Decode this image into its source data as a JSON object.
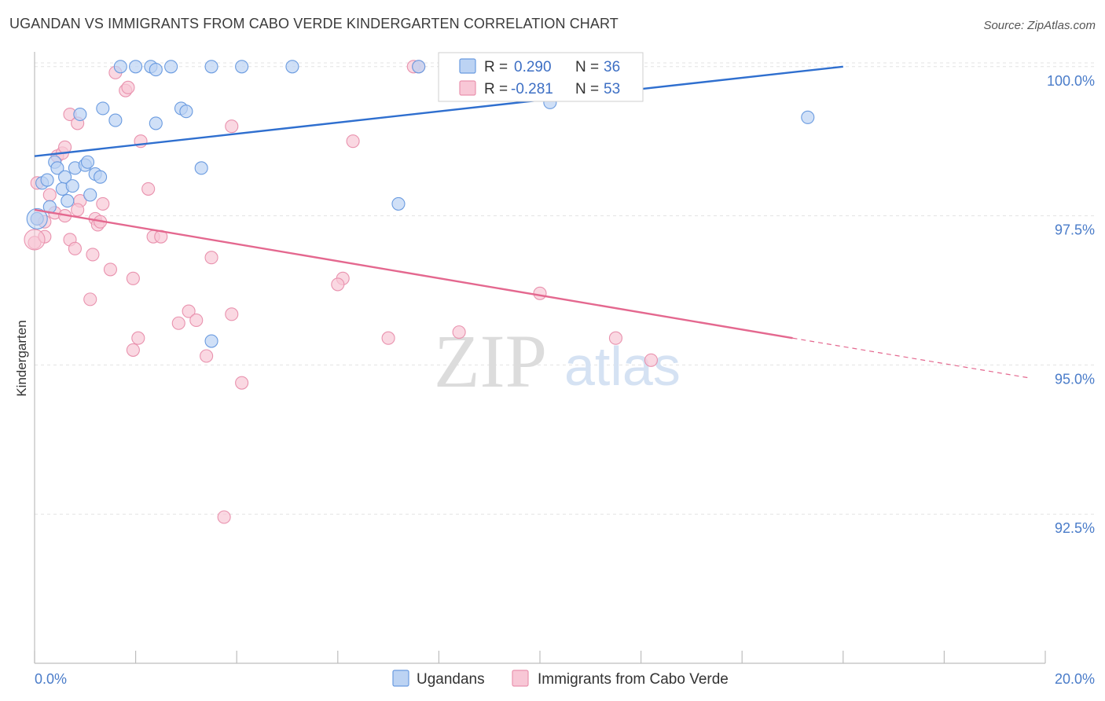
{
  "title": "UGANDAN VS IMMIGRANTS FROM CABO VERDE KINDERGARTEN CORRELATION CHART",
  "source": "Source: ZipAtlas.com",
  "watermark": {
    "zip": "ZIP",
    "atlas": "atlas"
  },
  "colors": {
    "blue_fill": "#bcd3f3",
    "blue_stroke": "#6a9be0",
    "blue_line": "#2f6fcf",
    "pink_fill": "#f8c7d6",
    "pink_stroke": "#e992ae",
    "pink_line": "#e4688f",
    "tick_text": "#4a7cc9",
    "grid": "#e3e3e3"
  },
  "legend": {
    "rows": [
      {
        "r_label": "R = ",
        "r_value": "0.290",
        "n_label": "N = ",
        "n_value": "36"
      },
      {
        "r_label": "R = ",
        "r_value": "-0.281",
        "n_label": "N = ",
        "n_value": "53"
      }
    ]
  },
  "bottom_legend": [
    "Ugandans",
    "Immigrants from Cabo Verde"
  ],
  "chart_data": {
    "type": "scatter",
    "title": "UGANDAN VS IMMIGRANTS FROM CABO VERDE KINDERGARTEN CORRELATION CHART",
    "xlabel": "",
    "ylabel": "Kindergarten",
    "xlim": [
      0,
      20
    ],
    "ylim": [
      90.0,
      100.3
    ],
    "x_tick_labels": [
      "0.0%",
      "20.0%"
    ],
    "y_ticks": [
      92.5,
      95.0,
      97.5,
      100.0
    ],
    "y_tick_labels": [
      "92.5%",
      "95.0%",
      "97.5%",
      "100.0%"
    ],
    "grid": true,
    "legend_position": "top-center",
    "series": [
      {
        "name": "Ugandans",
        "color": "#6a9be0",
        "trend": {
          "x0": 0.0,
          "y0": 98.5,
          "x1": 16.0,
          "y1": 100.0
        },
        "points": [
          [
            1.7,
            100.0
          ],
          [
            2.0,
            100.0
          ],
          [
            2.3,
            100.0
          ],
          [
            2.4,
            99.95
          ],
          [
            2.7,
            100.0
          ],
          [
            3.5,
            100.0
          ],
          [
            4.1,
            100.0
          ],
          [
            5.1,
            100.0
          ],
          [
            7.6,
            100.0
          ],
          [
            1.35,
            99.3
          ],
          [
            1.6,
            99.1
          ],
          [
            2.4,
            99.05
          ],
          [
            2.9,
            99.3
          ],
          [
            3.0,
            99.25
          ],
          [
            0.9,
            99.2
          ],
          [
            15.3,
            99.15
          ],
          [
            10.2,
            99.4
          ],
          [
            0.4,
            98.4
          ],
          [
            0.45,
            98.3
          ],
          [
            0.8,
            98.3
          ],
          [
            1.0,
            98.35
          ],
          [
            1.05,
            98.4
          ],
          [
            1.2,
            98.2
          ],
          [
            1.3,
            98.15
          ],
          [
            3.3,
            98.3
          ],
          [
            0.15,
            98.05
          ],
          [
            0.25,
            98.1
          ],
          [
            0.6,
            98.15
          ],
          [
            0.55,
            97.95
          ],
          [
            0.75,
            98.0
          ],
          [
            1.1,
            97.85
          ],
          [
            0.3,
            97.65
          ],
          [
            0.65,
            97.75
          ],
          [
            7.2,
            97.7
          ],
          [
            0.05,
            97.45
          ],
          [
            3.5,
            95.4
          ]
        ]
      },
      {
        "name": "Immigrants from Cabo Verde",
        "color": "#e992ae",
        "trend": {
          "x0": 0.0,
          "y0": 97.6,
          "x1": 15.0,
          "y1": 95.45,
          "dash_to_x": 19.7,
          "dash_to_y": 94.78
        },
        "points": [
          [
            1.6,
            99.9
          ],
          [
            1.8,
            99.6
          ],
          [
            1.85,
            99.65
          ],
          [
            7.5,
            100.0
          ],
          [
            7.6,
            100.0
          ],
          [
            0.7,
            99.2
          ],
          [
            0.85,
            99.05
          ],
          [
            3.9,
            99.0
          ],
          [
            6.3,
            98.75
          ],
          [
            2.1,
            98.75
          ],
          [
            0.45,
            98.5
          ],
          [
            0.55,
            98.55
          ],
          [
            0.6,
            98.65
          ],
          [
            0.05,
            98.05
          ],
          [
            2.25,
            97.95
          ],
          [
            0.3,
            97.85
          ],
          [
            0.9,
            97.75
          ],
          [
            1.35,
            97.7
          ],
          [
            0.85,
            97.6
          ],
          [
            0.4,
            97.55
          ],
          [
            0.6,
            97.5
          ],
          [
            0.05,
            97.45
          ],
          [
            0.2,
            97.4
          ],
          [
            1.2,
            97.45
          ],
          [
            1.25,
            97.35
          ],
          [
            1.3,
            97.4
          ],
          [
            0.0,
            97.05
          ],
          [
            0.2,
            97.15
          ],
          [
            0.7,
            97.1
          ],
          [
            0.8,
            96.95
          ],
          [
            1.15,
            96.85
          ],
          [
            2.35,
            97.15
          ],
          [
            2.5,
            97.15
          ],
          [
            3.5,
            96.8
          ],
          [
            1.5,
            96.6
          ],
          [
            1.95,
            96.45
          ],
          [
            6.1,
            96.45
          ],
          [
            6.0,
            96.35
          ],
          [
            10.0,
            96.2
          ],
          [
            1.1,
            96.1
          ],
          [
            3.05,
            95.9
          ],
          [
            3.9,
            95.85
          ],
          [
            2.85,
            95.7
          ],
          [
            3.2,
            95.75
          ],
          [
            8.4,
            95.55
          ],
          [
            7.0,
            95.45
          ],
          [
            11.5,
            95.45
          ],
          [
            2.05,
            95.45
          ],
          [
            1.95,
            95.25
          ],
          [
            3.4,
            95.15
          ],
          [
            12.2,
            95.08
          ],
          [
            4.1,
            94.7
          ],
          [
            3.75,
            92.45
          ]
        ]
      }
    ]
  }
}
